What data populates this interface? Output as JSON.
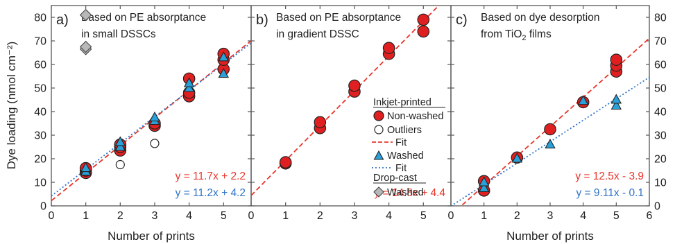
{
  "y_axis_label": "Dye loading (nmol cm⁻²)",
  "colors": {
    "red_marker": "#e02020",
    "red_line": "#e8352a",
    "blue_marker": "#2aa0d8",
    "blue_line": "#2f73c6",
    "outlier": "#ffffff",
    "dropcast": "#b8b8b8"
  },
  "legend": {
    "heading_inkjet": "Inkjet-printed",
    "non_washed": "Non-washed",
    "outliers": "Outliers",
    "fit_red": "Fit",
    "washed": "Washed",
    "fit_blue": "Fit",
    "heading_dropcast": "Drop-cast",
    "dropcast_washed": "Washed"
  },
  "chart_data": [
    {
      "type": "scatter",
      "panel_label": "a)",
      "title_lines": [
        [
          "Based on PE absorptance"
        ],
        [
          "in small DSSCs"
        ]
      ],
      "xlabel": "Number of prints",
      "ylabel": "Dye loading (nmol cm⁻²)",
      "xlim": [
        0,
        5.8
      ],
      "ylim": [
        0,
        85
      ],
      "xticks": [
        0,
        1,
        2,
        3,
        4,
        5
      ],
      "yticks": [
        0,
        10,
        20,
        30,
        40,
        50,
        60,
        70,
        80
      ],
      "grid": false,
      "series": [
        {
          "name": "Non-washed",
          "marker": "circle",
          "color": "#e02020",
          "x": [
            1,
            1,
            1,
            2,
            2,
            2,
            3,
            3,
            4,
            4,
            4,
            5,
            5,
            5
          ],
          "y": [
            14,
            15,
            16,
            23.5,
            25,
            26,
            34,
            35,
            46.5,
            48,
            54,
            58,
            62,
            64.5
          ]
        },
        {
          "name": "Outliers",
          "marker": "circle-open",
          "x": [
            2,
            3
          ],
          "y": [
            17.5,
            26.5
          ]
        },
        {
          "name": "Washed",
          "marker": "triangle",
          "color": "#2aa0d8",
          "x": [
            1,
            1,
            2,
            2,
            3,
            3,
            4,
            4,
            5,
            5
          ],
          "y": [
            14.5,
            16,
            25,
            27,
            36,
            37.5,
            50,
            52,
            56,
            63
          ]
        },
        {
          "name": "Drop-cast Washed",
          "marker": "diamond",
          "color": "#b8b8b8",
          "x": [
            1,
            1,
            1
          ],
          "y": [
            66.5,
            67.5,
            81
          ]
        }
      ],
      "fits": [
        {
          "slope": 11.7,
          "intercept": 2.2,
          "color": "#e8352a",
          "style": "dashed",
          "label": "y = 11.7x + 2.2"
        },
        {
          "slope": 11.2,
          "intercept": 4.2,
          "color": "#2f73c6",
          "style": "dotted",
          "label": "y = 11.2x + 4.2"
        }
      ]
    },
    {
      "type": "scatter",
      "panel_label": "b)",
      "title_lines": [
        [
          "Based on PE absorptance"
        ],
        [
          "in gradient DSSC"
        ]
      ],
      "xlabel": "",
      "ylabel": "",
      "xlim": [
        0,
        5.8
      ],
      "ylim": [
        0,
        85
      ],
      "xticks": [
        0,
        1,
        2,
        3,
        4,
        5
      ],
      "yticks": [
        0,
        10,
        20,
        30,
        40,
        50,
        60,
        70,
        80
      ],
      "grid": false,
      "series": [
        {
          "name": "Non-washed",
          "marker": "circle",
          "color": "#e02020",
          "x": [
            1,
            1,
            2,
            2,
            3,
            3,
            4,
            4,
            5,
            5
          ],
          "y": [
            18,
            18.5,
            33,
            35.5,
            48.5,
            51,
            64.5,
            67,
            74,
            79
          ]
        }
      ],
      "fits": [
        {
          "slope": 14.8,
          "intercept": 4.4,
          "color": "#e8352a",
          "style": "dashed",
          "label": "y = 14.8x + 4.4"
        }
      ]
    },
    {
      "type": "scatter",
      "panel_label": "c)",
      "title_lines": [
        [
          "Based on dye desorption"
        ],
        [
          "from TiO",
          "2",
          " films"
        ]
      ],
      "xlabel": "Number of prints",
      "ylabel": "",
      "xlim": [
        0,
        6
      ],
      "ylim": [
        0,
        85
      ],
      "xticks": [
        0,
        1,
        2,
        3,
        4,
        5,
        6
      ],
      "yticks": [
        0,
        10,
        20,
        30,
        40,
        50,
        60,
        70,
        80
      ],
      "grid": false,
      "series": [
        {
          "name": "Non-washed",
          "marker": "circle",
          "color": "#e02020",
          "x": [
            1,
            1,
            2,
            3,
            4,
            5,
            5,
            5
          ],
          "y": [
            6.5,
            10.5,
            20.5,
            32.5,
            44,
            57,
            59.5,
            62
          ]
        },
        {
          "name": "Washed",
          "marker": "triangle",
          "color": "#2aa0d8",
          "x": [
            1,
            1,
            2,
            3,
            4,
            5,
            5
          ],
          "y": [
            7.5,
            10,
            20,
            26,
            44.5,
            42.5,
            45
          ]
        }
      ],
      "fits": [
        {
          "slope": 12.5,
          "intercept": -3.9,
          "color": "#e8352a",
          "style": "dashed",
          "label": "y = 12.5x - 3.9"
        },
        {
          "slope": 9.11,
          "intercept": -0.1,
          "color": "#2f73c6",
          "style": "dotted",
          "label": "y = 9.11x - 0.1"
        }
      ]
    }
  ]
}
